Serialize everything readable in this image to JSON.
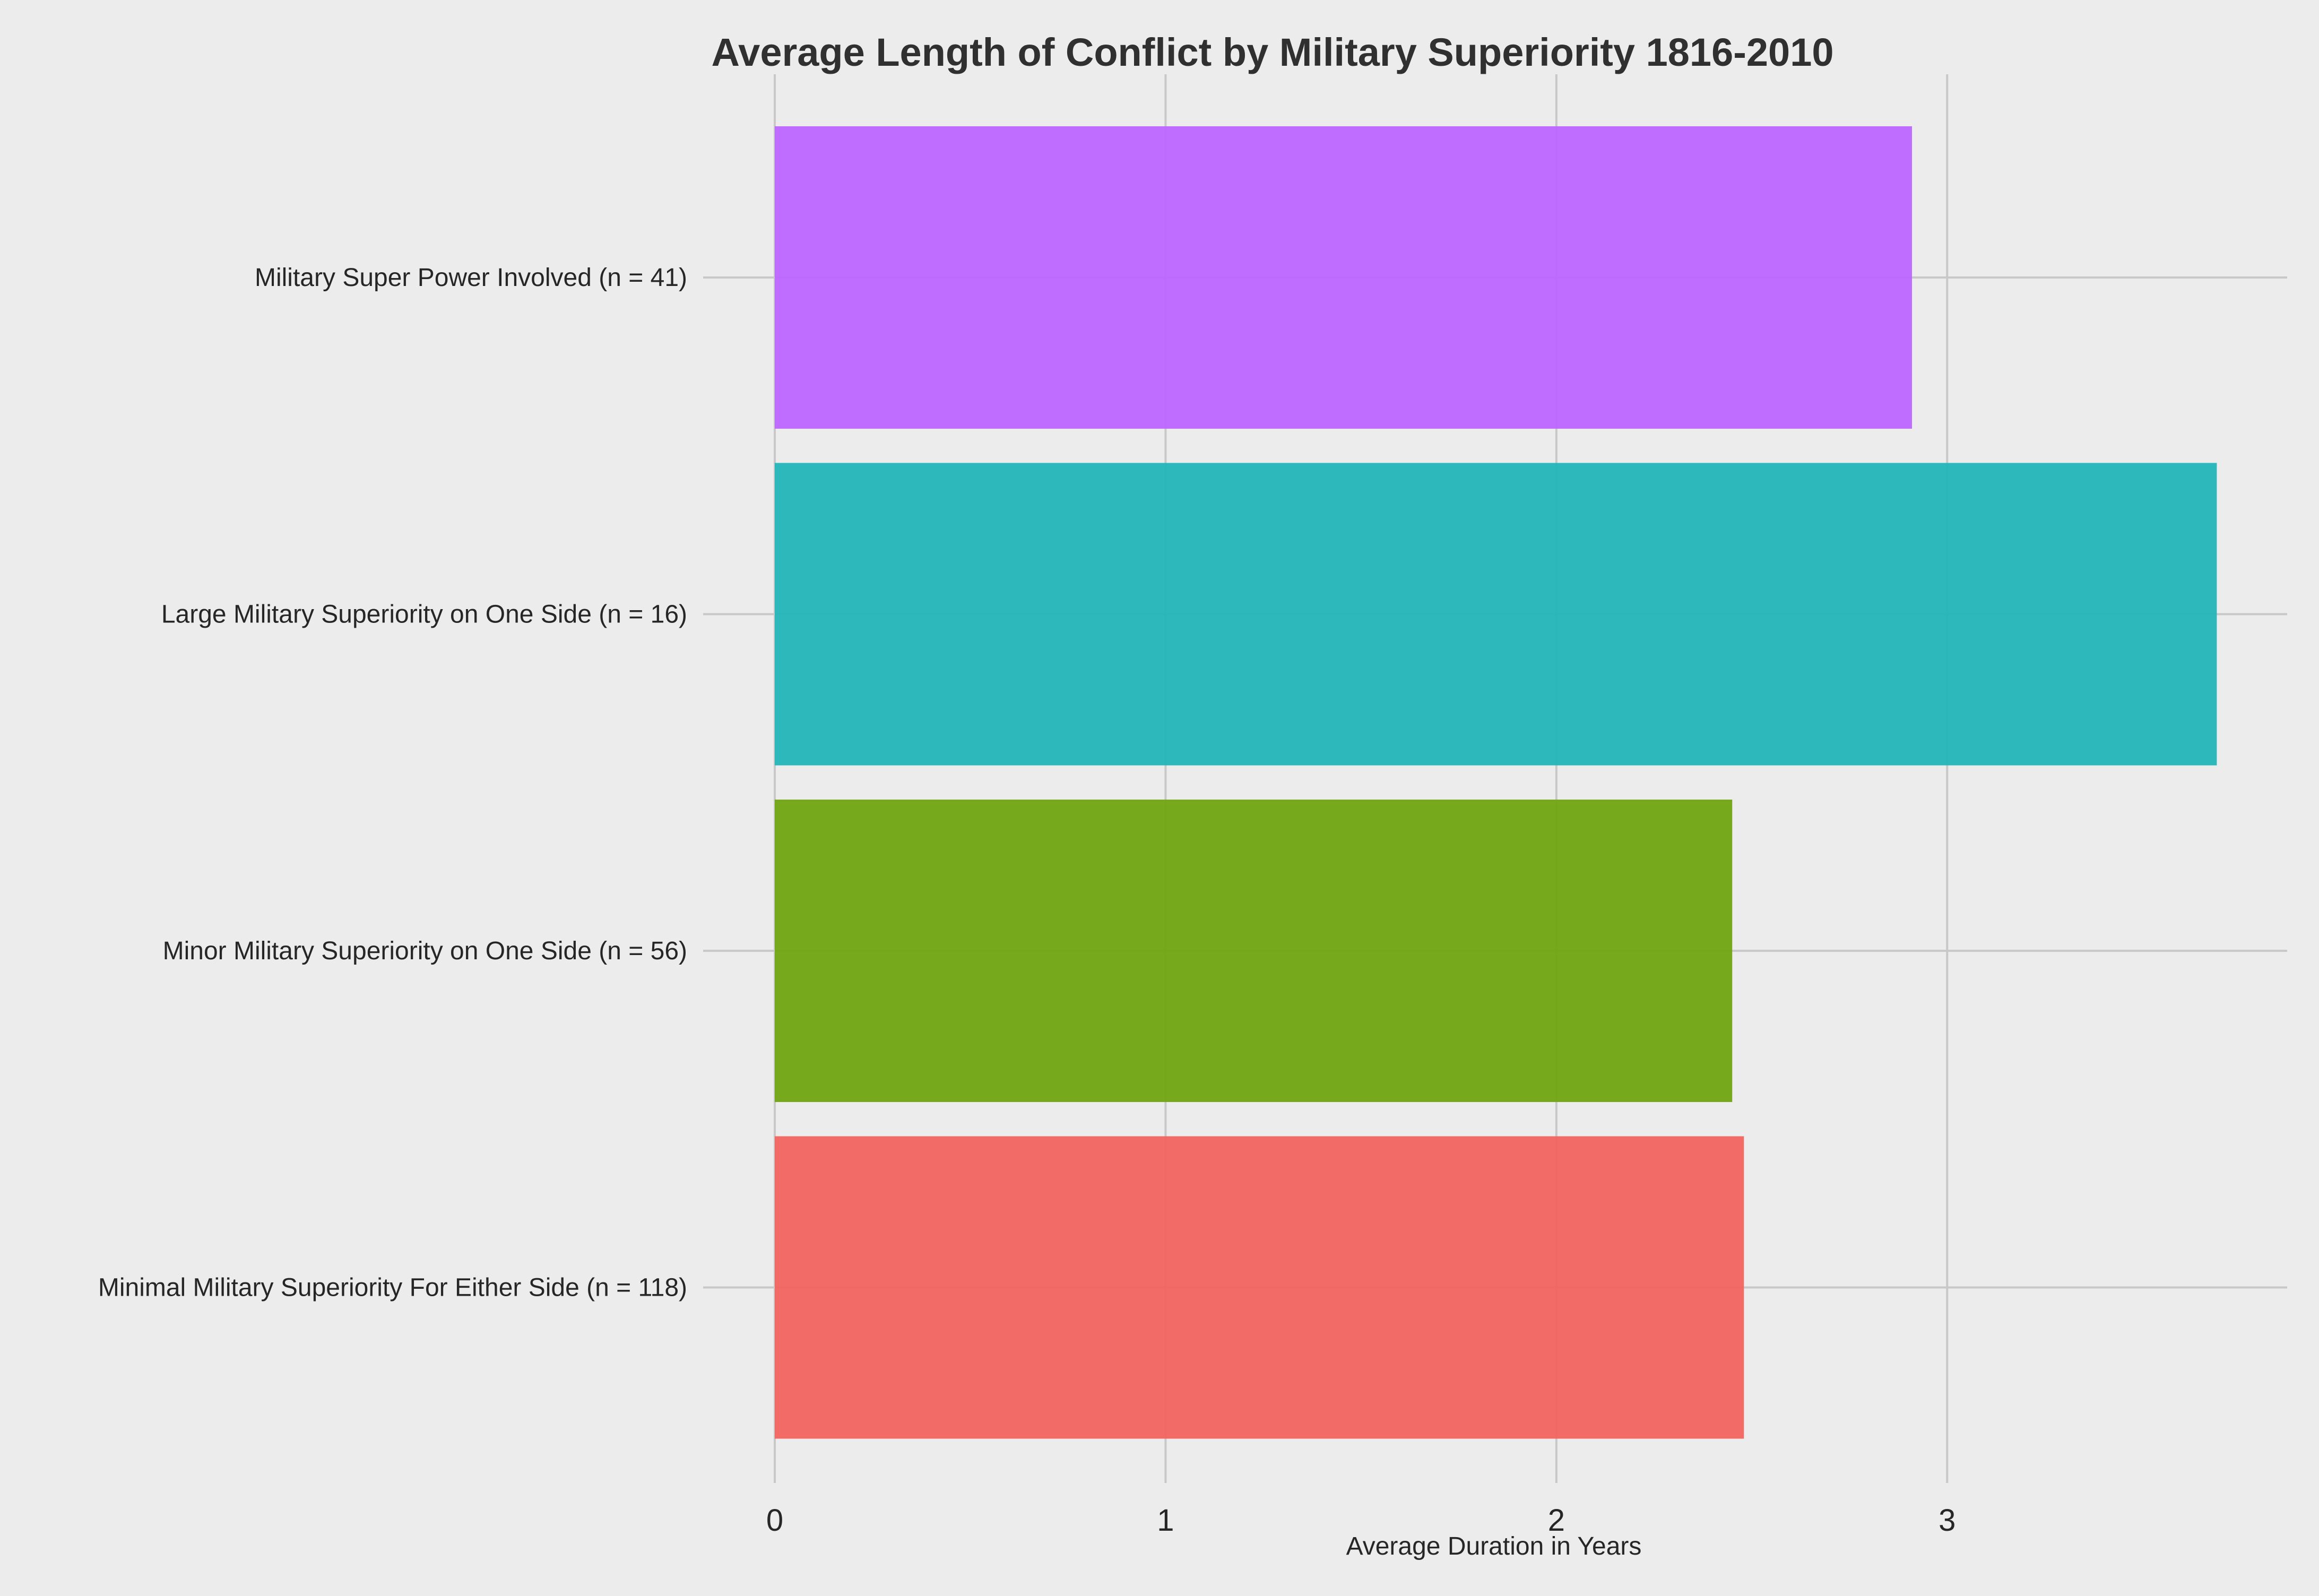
{
  "chart_data": {
    "type": "bar",
    "orientation": "horizontal",
    "title": "Average Length of Conflict by Military Superiority 1816-2010",
    "xlabel": "Average Duration in Years",
    "ylabel": "",
    "xlim": [
      0,
      3.87
    ],
    "x_ticks": [
      "0",
      "1",
      "2",
      "3"
    ],
    "grid": true,
    "legend": "none",
    "categories": [
      "Military Super Power Involved (n = 41)",
      "Large Military Superiority on One Side (n = 16)",
      "Minor Military Superiority on One Side (n = 56)",
      "Minimal Military Superiority For Either Side (n = 118)"
    ],
    "values": [
      2.91,
      3.69,
      2.45,
      2.48
    ],
    "colors": [
      "#bd66ff",
      "#23b5b8",
      "#71a511",
      "#f2645f"
    ]
  }
}
